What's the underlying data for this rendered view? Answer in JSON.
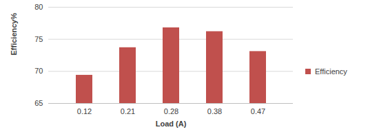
{
  "chart_data": {
    "type": "bar",
    "categories": [
      "0.12",
      "0.21",
      "0.28",
      "0.38",
      "0.47"
    ],
    "series": [
      {
        "name": "Efficiency",
        "color": "#c0504d",
        "values": [
          69.4,
          73.7,
          76.8,
          76.2,
          73.1
        ]
      }
    ],
    "x_label": "Load (A)",
    "y_label": "Efficiency%",
    "ylim": [
      65,
      80
    ],
    "yticks": [
      65,
      70,
      75,
      80
    ],
    "grid": true,
    "legend": "right"
  }
}
